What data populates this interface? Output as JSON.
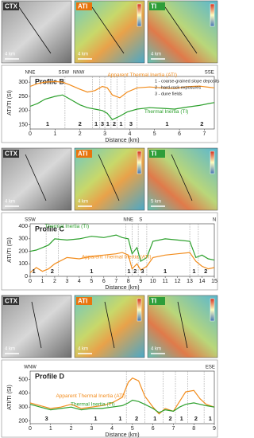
{
  "image_rows": [
    {
      "panels": [
        {
          "label": "CTX",
          "scale": "4 km"
        },
        {
          "label": "ATI",
          "scale": "4 km"
        },
        {
          "label": "TI",
          "scale": "4 km"
        }
      ]
    },
    {
      "panels": [
        {
          "label": "CTX",
          "scale": "4 km"
        },
        {
          "label": "ATI",
          "scale": "4 km"
        },
        {
          "label": "TI",
          "scale": "5 km"
        }
      ]
    },
    {
      "panels": [
        {
          "label": "CTX",
          "scale": "4 km"
        },
        {
          "label": "ATI",
          "scale": "4 km"
        },
        {
          "label": "TI",
          "scale": "4 km"
        }
      ]
    }
  ],
  "chart_data": [
    {
      "type": "line",
      "title": "Profile B",
      "xlabel": "Distance (km)",
      "ylabel": "ATI/TI (SI)",
      "x": [
        0,
        0.3,
        0.6,
        1,
        1.3,
        1.6,
        2,
        2.3,
        2.6,
        2.9,
        3.1,
        3.3,
        3.6,
        3.9,
        4.3,
        4.8,
        5.3,
        5.8,
        6.3,
        6.8,
        7.2,
        7.4
      ],
      "series": [
        {
          "name": "Apparent Thermal Inertia (ATI)",
          "color": "#f28c1c",
          "values": [
            285,
            295,
            300,
            302,
            300,
            290,
            275,
            265,
            270,
            285,
            280,
            255,
            245,
            265,
            280,
            283,
            280,
            278,
            284,
            286,
            282,
            280
          ]
        },
        {
          "name": "Thermal Inertia (TI)",
          "color": "#2ca02c",
          "values": [
            215,
            225,
            240,
            250,
            255,
            240,
            220,
            210,
            205,
            200,
            190,
            168,
            180,
            195,
            205,
            210,
            208,
            205,
            212,
            218,
            225,
            228
          ]
        }
      ],
      "xlim": [
        0,
        7.4
      ],
      "xticks": [
        0,
        1,
        2,
        3,
        4,
        5,
        6,
        7
      ],
      "ylim": [
        135,
        320
      ],
      "yticks": [
        150,
        200,
        250,
        300
      ],
      "directions": [
        {
          "x": 0,
          "label": "NNE"
        },
        {
          "x": 1.35,
          "label": "SSW"
        },
        {
          "x": 1.95,
          "label": "NNW"
        },
        {
          "x": 7.2,
          "label": "SSE"
        }
      ],
      "boundaries": [
        1.4,
        2.5,
        2.8,
        3.0,
        3.25,
        3.5,
        3.8,
        4.3
      ],
      "units": [
        {
          "x": 0.7,
          "label": "1"
        },
        {
          "x": 2,
          "label": "2"
        },
        {
          "x": 2.65,
          "label": "1"
        },
        {
          "x": 2.9,
          "label": "3"
        },
        {
          "x": 3.12,
          "label": "1"
        },
        {
          "x": 3.38,
          "label": "2"
        },
        {
          "x": 3.65,
          "label": "1"
        },
        {
          "x": 4.05,
          "label": "3"
        },
        {
          "x": 5.5,
          "label": "1"
        },
        {
          "x": 6.9,
          "label": "2"
        }
      ],
      "notes": [
        "1 - coarse-grained slope deposits",
        "2 - hard-rock exposures",
        "3 - dune fields"
      ]
    },
    {
      "type": "line",
      "title": "Profile C",
      "xlabel": "Distance (km)",
      "ylabel": "ATI/TI (SI)",
      "x": [
        0,
        0.5,
        1,
        1.5,
        2,
        3,
        4,
        5,
        6,
        7,
        7.5,
        8,
        8.3,
        8.7,
        9,
        9.5,
        10,
        11,
        12,
        13,
        13.5,
        14,
        14.5,
        15
      ],
      "series": [
        {
          "name": "Thermal Inertia (TI)",
          "color": "#2ca02c",
          "values": [
            200,
            210,
            230,
            250,
            300,
            290,
            300,
            320,
            310,
            330,
            310,
            300,
            180,
            230,
            120,
            150,
            280,
            300,
            290,
            280,
            150,
            170,
            140,
            130
          ]
        },
        {
          "name": "Apparent Thermal Inertia (ATI)",
          "color": "#f28c1c",
          "values": [
            30,
            70,
            40,
            60,
            100,
            150,
            140,
            160,
            170,
            180,
            190,
            170,
            60,
            100,
            50,
            80,
            150,
            170,
            180,
            190,
            120,
            80,
            60,
            70
          ]
        }
      ],
      "xlim": [
        0,
        15
      ],
      "xticks": [
        0,
        1,
        2,
        3,
        4,
        5,
        6,
        7,
        8,
        9,
        10,
        11,
        12,
        13,
        14,
        15
      ],
      "ylim": [
        0,
        420
      ],
      "yticks": [
        0,
        100,
        200,
        300,
        400
      ],
      "directions": [
        {
          "x": 0,
          "label": "SSW"
        },
        {
          "x": 8,
          "label": "NNE"
        },
        {
          "x": 9,
          "label": "S"
        },
        {
          "x": 15,
          "label": "N"
        }
      ],
      "boundaries": [
        1.3,
        2.3,
        7.8,
        8.3,
        8.8,
        9.5,
        13,
        13.7
      ],
      "units": [
        {
          "x": 0.3,
          "label": "1"
        },
        {
          "x": 1.8,
          "label": "2"
        },
        {
          "x": 5,
          "label": "1"
        },
        {
          "x": 8.05,
          "label": "1"
        },
        {
          "x": 8.55,
          "label": "2"
        },
        {
          "x": 9.15,
          "label": "3"
        },
        {
          "x": 11,
          "label": "1"
        },
        {
          "x": 13.35,
          "label": "1"
        },
        {
          "x": 14.3,
          "label": "2"
        }
      ]
    },
    {
      "type": "line",
      "title": "Profile D",
      "xlabel": "Distance (km)",
      "ylabel": "ATI/TI (SI)",
      "x": [
        0,
        0.5,
        1,
        1.5,
        2,
        2.5,
        3,
        3.5,
        4,
        4.5,
        4.8,
        5,
        5.3,
        5.6,
        6,
        6.3,
        6.6,
        7,
        7.3,
        7.6,
        8,
        8.3,
        8.6,
        9
      ],
      "series": [
        {
          "name": "Apparent Thermal Inertia (ATI)",
          "color": "#f28c1c",
          "values": [
            330,
            310,
            290,
            300,
            320,
            290,
            300,
            310,
            330,
            370,
            480,
            510,
            490,
            380,
            300,
            250,
            290,
            270,
            340,
            410,
            420,
            360,
            320,
            300
          ]
        },
        {
          "name": "Thermal Inertia (TI)",
          "color": "#2ca02c",
          "values": [
            320,
            300,
            280,
            290,
            300,
            280,
            290,
            290,
            300,
            310,
            330,
            350,
            340,
            320,
            290,
            260,
            280,
            270,
            300,
            320,
            330,
            320,
            310,
            300
          ]
        }
      ],
      "xlim": [
        0,
        9
      ],
      "xticks": [
        0,
        1,
        2,
        3,
        4,
        5,
        6,
        7,
        8,
        9
      ],
      "ylim": [
        180,
        560
      ],
      "yticks": [
        200,
        300,
        400,
        500
      ],
      "directions": [
        {
          "x": 0,
          "label": "WNW"
        },
        {
          "x": 8.8,
          "label": "ESE"
        }
      ],
      "boundaries": [
        4.7,
        5.6,
        6.5,
        7.1,
        7.7,
        8.5
      ],
      "units": [
        {
          "x": 0.8,
          "label": "3"
        },
        {
          "x": 3.2,
          "label": "1"
        },
        {
          "x": 4.4,
          "label": "1"
        },
        {
          "x": 5.2,
          "label": "2"
        },
        {
          "x": 6.1,
          "label": "1"
        },
        {
          "x": 6.85,
          "label": "2"
        },
        {
          "x": 7.4,
          "label": "1"
        },
        {
          "x": 8.1,
          "label": "2"
        },
        {
          "x": 8.8,
          "label": "1"
        }
      ]
    }
  ]
}
